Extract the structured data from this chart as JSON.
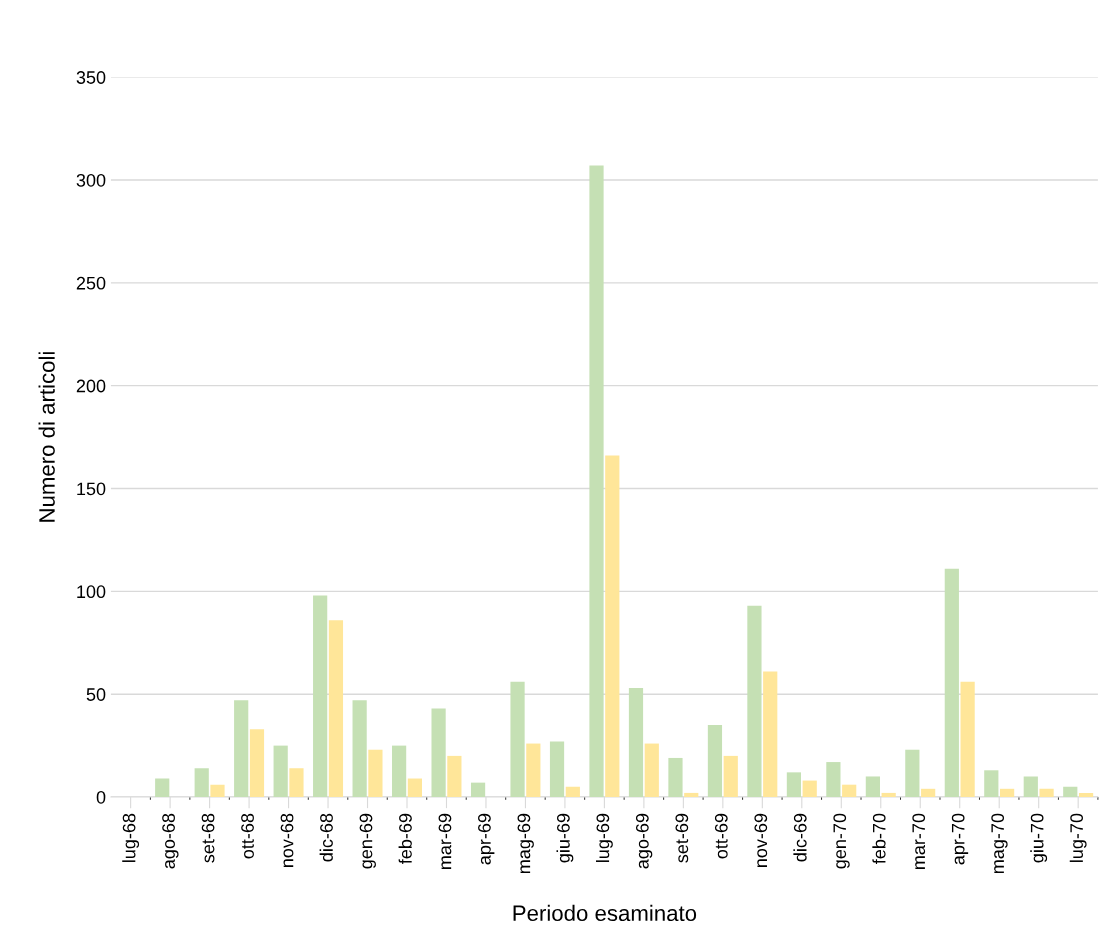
{
  "chart_data": {
    "type": "bar",
    "xlabel": "Periodo esaminato",
    "ylabel": "Numero di articoli",
    "categories": [
      "lug-68",
      "ago-68",
      "set-68",
      "ott-68",
      "nov-68",
      "dic-68",
      "gen-69",
      "feb-69",
      "mar-69",
      "apr-69",
      "mag-69",
      "giu-69",
      "lug-69",
      "ago-69",
      "set-69",
      "ott-69",
      "nov-69",
      "dic-69",
      "gen-70",
      "feb-70",
      "mar-70",
      "apr-70",
      "mag-70",
      "giu-70",
      "lug-70"
    ],
    "series": [
      {
        "color": "#c5e0b4",
        "values": [
          0,
          9,
          14,
          47,
          25,
          98,
          47,
          25,
          43,
          7,
          56,
          27,
          307,
          53,
          19,
          35,
          93,
          12,
          17,
          10,
          23,
          111,
          13,
          10,
          5
        ]
      },
      {
        "color": "#ffe699",
        "values": [
          0,
          0,
          6,
          33,
          14,
          86,
          23,
          9,
          20,
          0,
          26,
          5,
          166,
          26,
          2,
          20,
          61,
          8,
          6,
          2,
          4,
          56,
          4,
          4,
          2
        ]
      }
    ],
    "ylim": [
      0,
      350
    ],
    "yticks": [
      0,
      50,
      100,
      150,
      200,
      250,
      300,
      350
    ],
    "grid": "y"
  }
}
